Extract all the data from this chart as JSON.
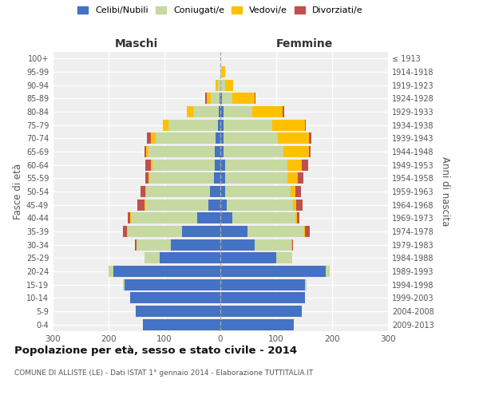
{
  "age_groups": [
    "0-4",
    "5-9",
    "10-14",
    "15-19",
    "20-24",
    "25-29",
    "30-34",
    "35-39",
    "40-44",
    "45-49",
    "50-54",
    "55-59",
    "60-64",
    "65-69",
    "70-74",
    "75-79",
    "80-84",
    "85-89",
    "90-94",
    "95-99",
    "100+"
  ],
  "birth_years": [
    "2009-2013",
    "2004-2008",
    "1999-2003",
    "1994-1998",
    "1989-1993",
    "1984-1988",
    "1979-1983",
    "1974-1978",
    "1969-1973",
    "1964-1968",
    "1959-1963",
    "1954-1958",
    "1949-1953",
    "1944-1948",
    "1939-1943",
    "1934-1938",
    "1929-1933",
    "1924-1928",
    "1919-1923",
    "1914-1918",
    "≤ 1913"
  ],
  "male": {
    "celibe": [
      138,
      152,
      162,
      172,
      192,
      108,
      88,
      68,
      42,
      22,
      18,
      12,
      10,
      10,
      8,
      5,
      3,
      2,
      0,
      0,
      0
    ],
    "coniugato": [
      0,
      0,
      0,
      2,
      8,
      28,
      62,
      98,
      118,
      112,
      115,
      115,
      112,
      118,
      108,
      88,
      45,
      15,
      5,
      0,
      0
    ],
    "vedovo": [
      0,
      0,
      0,
      0,
      0,
      0,
      0,
      1,
      1,
      2,
      2,
      2,
      3,
      5,
      8,
      10,
      12,
      8,
      3,
      0,
      0
    ],
    "divorziato": [
      0,
      0,
      0,
      0,
      0,
      0,
      3,
      8,
      5,
      12,
      8,
      5,
      10,
      3,
      8,
      0,
      0,
      2,
      0,
      0,
      0
    ]
  },
  "female": {
    "nubile": [
      132,
      145,
      152,
      152,
      188,
      100,
      62,
      48,
      22,
      12,
      8,
      8,
      8,
      5,
      5,
      5,
      5,
      3,
      0,
      0,
      0
    ],
    "coniugata": [
      0,
      0,
      0,
      2,
      8,
      28,
      65,
      102,
      112,
      118,
      118,
      112,
      112,
      108,
      98,
      88,
      52,
      18,
      8,
      3,
      0
    ],
    "vedova": [
      0,
      0,
      0,
      0,
      0,
      0,
      1,
      2,
      3,
      5,
      8,
      18,
      25,
      45,
      55,
      58,
      55,
      40,
      15,
      5,
      0
    ],
    "divorziata": [
      0,
      0,
      0,
      0,
      0,
      0,
      2,
      8,
      5,
      12,
      10,
      10,
      12,
      3,
      5,
      2,
      2,
      2,
      0,
      0,
      0
    ]
  },
  "colors": {
    "celibe": "#4472c4",
    "coniugato": "#c5d9a0",
    "vedovo": "#ffc000",
    "divorziato": "#c0504d"
  },
  "title": "Popolazione per età, sesso e stato civile - 2014",
  "subtitle": "COMUNE DI ALLISTE (LE) - Dati ISTAT 1° gennaio 2014 - Elaborazione TUTTITALIA.IT",
  "xlabel_left": "Maschi",
  "xlabel_right": "Femmine",
  "ylabel_left": "Fasce di età",
  "ylabel_right": "Anni di nascita",
  "xlim": 300,
  "legend_labels": [
    "Celibi/Nubili",
    "Coniugati/e",
    "Vedovi/e",
    "Divorziati/e"
  ],
  "background_color": "#ffffff",
  "plot_bg_color": "#efefef"
}
